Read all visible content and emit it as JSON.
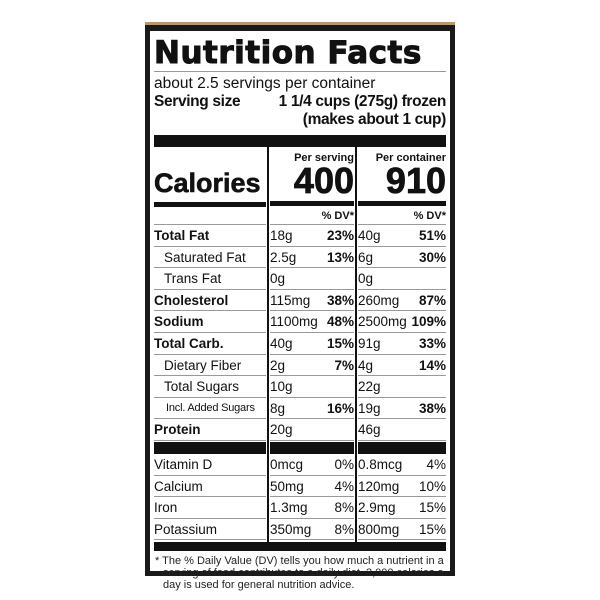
{
  "title": "Nutrition Facts",
  "servings_per_container": "about 2.5 servings per container",
  "serving_size_label": "Serving size",
  "serving_size_value": "1 1/4 cups (275g) frozen",
  "serving_size_note": "(makes about 1 cup)",
  "columns": {
    "per_serving": "Per serving",
    "per_container": "Per container"
  },
  "calories": {
    "label": "Calories",
    "per_serving": "400",
    "per_container": "910"
  },
  "dv_header": "% DV*",
  "nutrients": [
    {
      "name": "Total Fat",
      "bold": true,
      "indent": 0,
      "s_amt": "18g",
      "s_dv": "23%",
      "c_amt": "40g",
      "c_dv": "51%"
    },
    {
      "name": "Saturated Fat",
      "bold": false,
      "indent": 1,
      "s_amt": "2.5g",
      "s_dv": "13%",
      "c_amt": "6g",
      "c_dv": "30%"
    },
    {
      "name": "Trans Fat",
      "bold": false,
      "indent": 1,
      "s_amt": "0g",
      "s_dv": "",
      "c_amt": "0g",
      "c_dv": ""
    },
    {
      "name": "Cholesterol",
      "bold": true,
      "indent": 0,
      "s_amt": "115mg",
      "s_dv": "38%",
      "c_amt": "260mg",
      "c_dv": "87%"
    },
    {
      "name": "Sodium",
      "bold": true,
      "indent": 0,
      "s_amt": "1100mg",
      "s_dv": "48%",
      "c_amt": "2500mg",
      "c_dv": "109%"
    },
    {
      "name": "Total Carb.",
      "bold": true,
      "indent": 0,
      "s_amt": "40g",
      "s_dv": "15%",
      "c_amt": "91g",
      "c_dv": "33%"
    },
    {
      "name": "Dietary Fiber",
      "bold": false,
      "indent": 1,
      "s_amt": "2g",
      "s_dv": "7%",
      "c_amt": "4g",
      "c_dv": "14%"
    },
    {
      "name": "Total Sugars",
      "bold": false,
      "indent": 1,
      "s_amt": "10g",
      "s_dv": "",
      "c_amt": "22g",
      "c_dv": ""
    },
    {
      "name": "Incl. Added Sugars",
      "bold": false,
      "indent": 2,
      "s_amt": "8g",
      "s_dv": "16%",
      "c_amt": "19g",
      "c_dv": "38%"
    },
    {
      "name": "Protein",
      "bold": true,
      "indent": 0,
      "s_amt": "20g",
      "s_dv": "",
      "c_amt": "46g",
      "c_dv": ""
    }
  ],
  "vitamins": [
    {
      "name": "Vitamin D",
      "s_amt": "0mcg",
      "s_dv": "0%",
      "c_amt": "0.8mcg",
      "c_dv": "4%"
    },
    {
      "name": "Calcium",
      "s_amt": "50mg",
      "s_dv": "4%",
      "c_amt": "120mg",
      "c_dv": "10%"
    },
    {
      "name": "Iron",
      "s_amt": "1.3mg",
      "s_dv": "8%",
      "c_amt": "2.9mg",
      "c_dv": "15%"
    },
    {
      "name": "Potassium",
      "s_amt": "350mg",
      "s_dv": "8%",
      "c_amt": "800mg",
      "c_dv": "15%"
    }
  ],
  "footnote": "* The % Daily Value (DV) tells you how much a nutrient in a serving of food contributes to a daily diet. 2,000 calories a day is used for general nutrition advice."
}
